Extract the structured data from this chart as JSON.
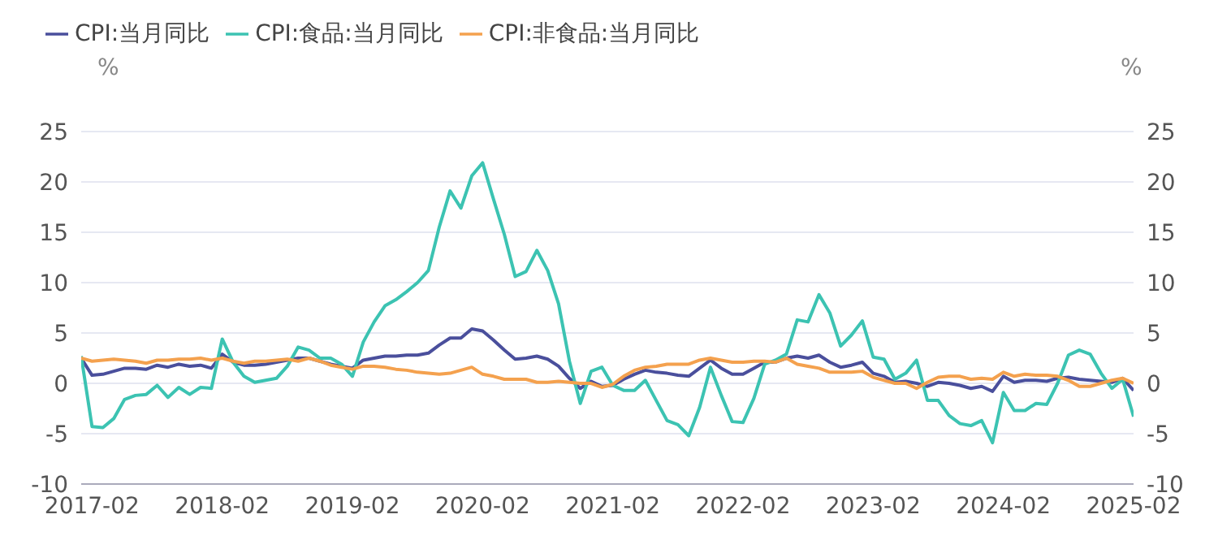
{
  "chart_data": {
    "type": "line",
    "categories": [
      null,
      "2017-02",
      null,
      null,
      null,
      null,
      null,
      null,
      null,
      null,
      null,
      null,
      null,
      "2018-02",
      null,
      null,
      null,
      null,
      null,
      null,
      null,
      null,
      null,
      null,
      null,
      "2019-02",
      null,
      null,
      null,
      null,
      null,
      null,
      null,
      null,
      null,
      null,
      null,
      "2020-02",
      null,
      null,
      null,
      null,
      null,
      null,
      null,
      null,
      null,
      null,
      null,
      "2021-02",
      null,
      null,
      null,
      null,
      null,
      null,
      null,
      null,
      null,
      null,
      null,
      "2022-02",
      null,
      null,
      null,
      null,
      null,
      null,
      null,
      null,
      null,
      null,
      null,
      "2023-02",
      null,
      null,
      null,
      null,
      null,
      null,
      null,
      null,
      null,
      null,
      null,
      "2024-02",
      null,
      null,
      null,
      null,
      null,
      null,
      null,
      null,
      null,
      null,
      null,
      "2025-02"
    ],
    "series": [
      {
        "name": "CPI:当月同比",
        "color": "#4a4f9c",
        "values": [
          2.5,
          0.8,
          0.9,
          1.2,
          1.5,
          1.5,
          1.4,
          1.8,
          1.6,
          1.9,
          1.7,
          1.8,
          1.5,
          2.9,
          2.1,
          1.8,
          1.8,
          1.9,
          2.1,
          2.3,
          2.5,
          2.5,
          2.2,
          1.9,
          1.7,
          1.5,
          2.3,
          2.5,
          2.7,
          2.7,
          2.8,
          2.8,
          3.0,
          3.8,
          4.5,
          4.5,
          5.4,
          5.2,
          4.3,
          3.3,
          2.4,
          2.5,
          2.7,
          2.4,
          1.7,
          0.5,
          -0.5,
          0.2,
          -0.3,
          -0.2,
          0.4,
          0.9,
          1.3,
          1.1,
          1.0,
          0.8,
          0.7,
          1.5,
          2.3,
          1.5,
          0.9,
          0.9,
          1.5,
          2.1,
          2.1,
          2.5,
          2.7,
          2.5,
          2.8,
          2.1,
          1.6,
          1.8,
          2.1,
          1.0,
          0.7,
          0.1,
          0.2,
          0.0,
          -0.3,
          0.1,
          0.0,
          -0.2,
          -0.5,
          -0.3,
          -0.8,
          0.7,
          0.1,
          0.3,
          0.3,
          0.2,
          0.5,
          0.6,
          0.4,
          0.3,
          0.2,
          0.1,
          0.5,
          -0.7
        ]
      },
      {
        "name": "CPI:食品:当月同比",
        "color": "#3cc3b2",
        "values": [
          2.7,
          -4.3,
          -4.4,
          -3.5,
          -1.6,
          -1.2,
          -1.1,
          -0.2,
          -1.4,
          -0.4,
          -1.1,
          -0.4,
          -0.5,
          4.4,
          2.1,
          0.7,
          0.1,
          0.3,
          0.5,
          1.7,
          3.6,
          3.3,
          2.5,
          2.5,
          1.9,
          0.7,
          4.1,
          6.1,
          7.7,
          8.3,
          9.1,
          10.0,
          11.2,
          15.5,
          19.1,
          17.4,
          20.6,
          21.9,
          18.3,
          14.8,
          10.6,
          11.1,
          13.2,
          11.2,
          7.9,
          2.2,
          -2.0,
          1.2,
          1.6,
          -0.2,
          -0.7,
          -0.7,
          0.3,
          -1.7,
          -3.7,
          -4.1,
          -5.2,
          -2.4,
          1.6,
          -1.2,
          -3.8,
          -3.9,
          -1.5,
          1.9,
          2.3,
          2.9,
          6.3,
          6.1,
          8.8,
          7.0,
          3.7,
          4.8,
          6.2,
          2.6,
          2.4,
          0.4,
          1.0,
          2.3,
          -1.7,
          -1.7,
          -3.2,
          -4.0,
          -4.2,
          -3.7,
          -5.9,
          -0.9,
          -2.7,
          -2.7,
          -2.0,
          -2.1,
          0.0,
          2.8,
          3.3,
          2.9,
          1.0,
          -0.5,
          0.4,
          -3.3
        ]
      },
      {
        "name": "CPI:非食品:当月同比",
        "color": "#f4a14e",
        "values": [
          2.5,
          2.2,
          2.3,
          2.4,
          2.3,
          2.2,
          2.0,
          2.3,
          2.3,
          2.4,
          2.4,
          2.5,
          2.3,
          2.5,
          2.2,
          2.0,
          2.2,
          2.2,
          2.3,
          2.4,
          2.2,
          2.5,
          2.2,
          1.8,
          1.6,
          1.4,
          1.7,
          1.7,
          1.6,
          1.4,
          1.3,
          1.1,
          1.0,
          0.9,
          1.0,
          1.3,
          1.6,
          0.9,
          0.7,
          0.4,
          0.4,
          0.4,
          0.1,
          0.1,
          0.2,
          0.1,
          0.0,
          0.0,
          -0.4,
          -0.1,
          0.7,
          1.3,
          1.6,
          1.7,
          1.9,
          1.9,
          1.9,
          2.3,
          2.5,
          2.3,
          2.1,
          2.1,
          2.2,
          2.2,
          2.1,
          2.5,
          1.9,
          1.7,
          1.5,
          1.1,
          1.1,
          1.1,
          1.2,
          0.6,
          0.3,
          0.0,
          0.0,
          -0.5,
          0.1,
          0.6,
          0.7,
          0.7,
          0.4,
          0.5,
          0.4,
          1.1,
          0.7,
          0.9,
          0.8,
          0.8,
          0.7,
          0.3,
          -0.3,
          -0.3,
          0.0,
          0.3,
          0.5,
          0.0
        ]
      }
    ],
    "ylabel": "%",
    "y2label": "%",
    "ylim": [
      -10,
      25
    ],
    "yticks": [
      -10,
      -5,
      0,
      5,
      10,
      15,
      20,
      25
    ],
    "y2lim": [
      -10,
      25
    ],
    "y2ticks": [
      -10,
      -5,
      0,
      5,
      10,
      15,
      20,
      25
    ],
    "grid": "y",
    "legend": "top left",
    "marker": "none",
    "line_style": "solid"
  }
}
